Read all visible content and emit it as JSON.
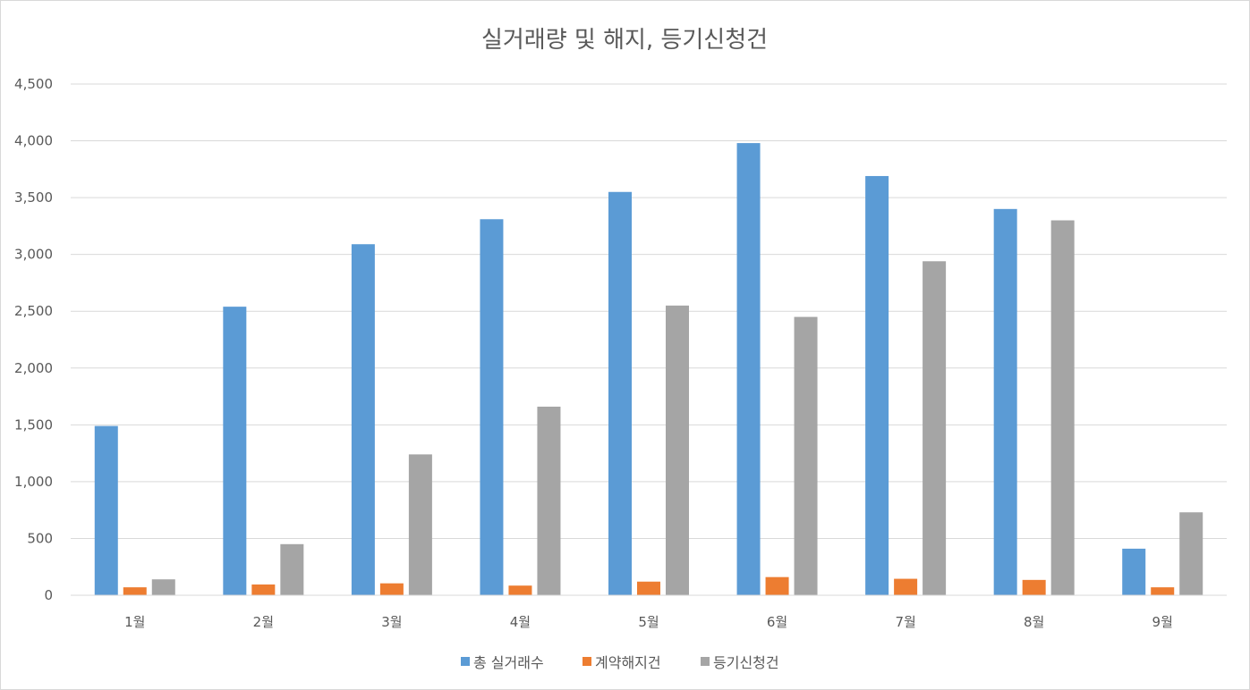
{
  "chart_data": {
    "type": "bar",
    "title": "실거래량 및 해지, 등기신청건",
    "categories": [
      "1월",
      "2월",
      "3월",
      "4월",
      "5월",
      "6월",
      "7월",
      "8월",
      "9월"
    ],
    "series": [
      {
        "name": "총 실거래수",
        "color": "#5b9bd5",
        "values": [
          1490,
          2540,
          3090,
          3310,
          3550,
          3980,
          3690,
          3400,
          410
        ]
      },
      {
        "name": "계약해지건",
        "color": "#ed7d31",
        "values": [
          70,
          95,
          105,
          85,
          120,
          160,
          145,
          135,
          70
        ]
      },
      {
        "name": "등기신청건",
        "color": "#a5a5a5",
        "values": [
          140,
          450,
          1240,
          1660,
          2550,
          2450,
          2940,
          3300,
          730
        ]
      }
    ],
    "ylim": [
      0,
      4500
    ],
    "yticks": [
      0,
      500,
      1000,
      1500,
      2000,
      2500,
      3000,
      3500,
      4000,
      4500
    ],
    "ytick_labels": [
      "0",
      "500",
      "1,000",
      "1,500",
      "2,000",
      "2,500",
      "3,000",
      "3,500",
      "4,000",
      "4,500"
    ],
    "xlabel": "",
    "ylabel": "",
    "grid": true,
    "legend_position": "bottom"
  }
}
